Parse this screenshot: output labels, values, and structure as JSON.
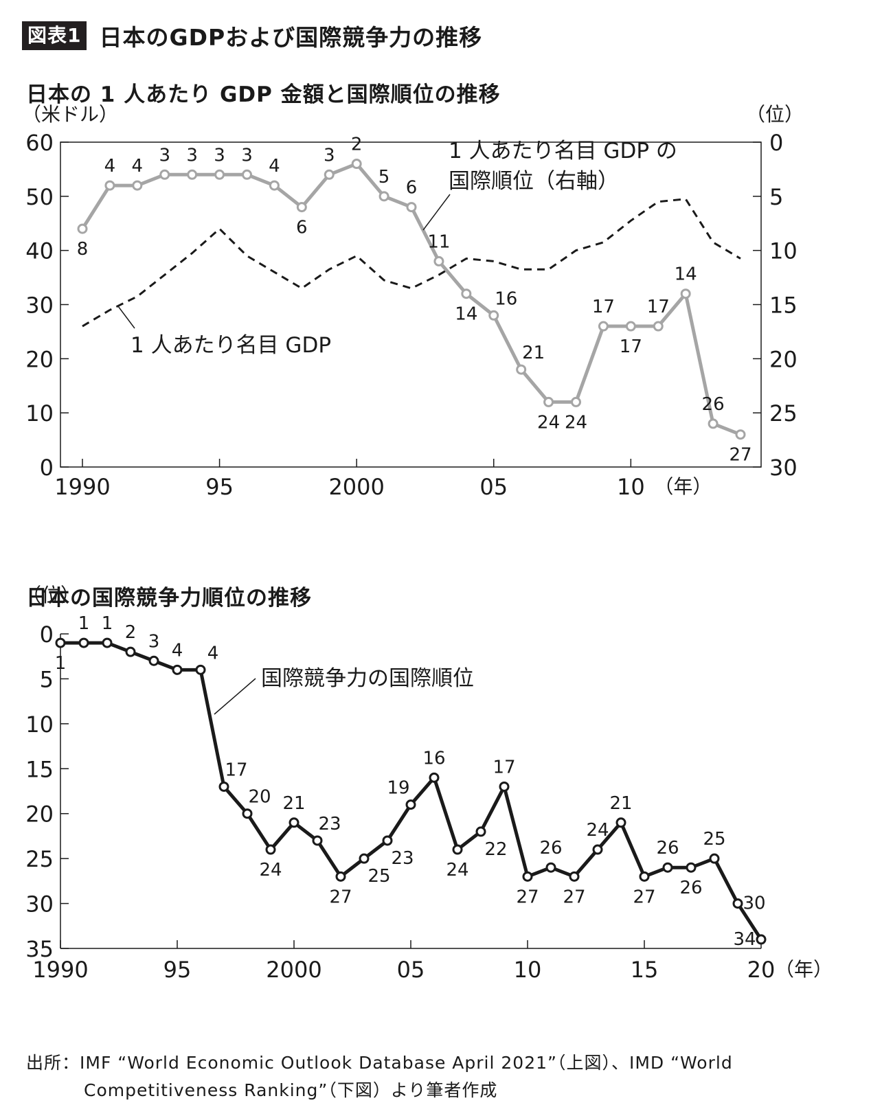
{
  "header": {
    "badge": "図表1",
    "title": "日本のGDPおよび国際競争力の推移"
  },
  "chart_data": [
    {
      "type": "line",
      "title": "日本の 1 人あたり GDP 金額と国際順位の推移",
      "y_unit_left": "（米ドル）",
      "y_unit_right": "（位）",
      "x_unit": "（年）",
      "x_tick_labels": [
        "1990",
        "95",
        "2000",
        "05",
        "10"
      ],
      "x_ticks": [
        1990,
        1995,
        2000,
        2005,
        2010
      ],
      "xlim": [
        1990,
        2014
      ],
      "ylim_left": [
        0,
        60
      ],
      "y_ticks_left": [
        0,
        10,
        20,
        30,
        40,
        50,
        60
      ],
      "ylim_right": [
        0,
        30
      ],
      "y_ticks_right": [
        0,
        5,
        10,
        15,
        20,
        25,
        30
      ],
      "right_axis_reversed": true,
      "series": [
        {
          "name": "1 人あたり名目 GDP の国際順位（右軸）",
          "axis": "right",
          "style": "solid-gray-markers",
          "color": "#a5a5a5",
          "x": [
            1990,
            1991,
            1992,
            1993,
            1994,
            1995,
            1996,
            1997,
            1998,
            1999,
            2000,
            2001,
            2002,
            2003,
            2004,
            2005,
            2006,
            2007,
            2008,
            2009,
            2010,
            2011,
            2012,
            2013,
            2014
          ],
          "values": [
            8,
            4,
            4,
            3,
            3,
            3,
            3,
            4,
            6,
            3,
            2,
            5,
            6,
            11,
            14,
            16,
            21,
            24,
            24,
            17,
            17,
            17,
            14,
            26,
            27
          ],
          "label_pos": [
            "b",
            "t",
            "t",
            "t",
            "t",
            "t",
            "t",
            "t",
            "b",
            "t",
            "t",
            "t",
            "t",
            "t",
            "b",
            "tr",
            "tr",
            "b",
            "b",
            "t",
            "b",
            "t",
            "t",
            "t",
            "b"
          ]
        },
        {
          "name": "1 人あたり名目 GDP",
          "axis": "left",
          "style": "dashed-black",
          "color": "#1a1a1a",
          "x": [
            1990,
            1991,
            1992,
            1993,
            1994,
            1995,
            1996,
            1997,
            1998,
            1999,
            2000,
            2001,
            2002,
            2003,
            2004,
            2005,
            2006,
            2007,
            2008,
            2009,
            2010,
            2011,
            2012,
            2013,
            2014
          ],
          "values": [
            26,
            29,
            31.5,
            35.5,
            39.5,
            44,
            39,
            36,
            33,
            36.5,
            39,
            34.5,
            33,
            35.5,
            38.5,
            38,
            36.5,
            36.5,
            40,
            41.5,
            45.5,
            49,
            49.5,
            41.5,
            38.5
          ]
        }
      ]
    },
    {
      "type": "line",
      "title": "日本の国際競争力順位の推移",
      "y_unit": "（位）",
      "x_unit": "（年）",
      "x_tick_labels": [
        "1990",
        "95",
        "2000",
        "05",
        "10",
        "15",
        "20"
      ],
      "x_ticks": [
        1990,
        1995,
        2000,
        2005,
        2010,
        2015,
        2020
      ],
      "xlim": [
        1990,
        2020
      ],
      "ylim": [
        0,
        35
      ],
      "y_ticks": [
        0,
        5,
        10,
        15,
        20,
        25,
        30,
        35
      ],
      "y_reversed": true,
      "series": [
        {
          "name": "国際競争力の国際順位",
          "style": "solid-black-markers",
          "color": "#1a1a1a",
          "x": [
            1990,
            1991,
            1992,
            1993,
            1994,
            1995,
            1996,
            1997,
            1998,
            1999,
            2000,
            2001,
            2002,
            2003,
            2004,
            2005,
            2006,
            2007,
            2008,
            2009,
            2010,
            2011,
            2012,
            2013,
            2014,
            2015,
            2016,
            2017,
            2018,
            2019,
            2020
          ],
          "values": [
            1,
            1,
            1,
            2,
            3,
            4,
            4,
            17,
            20,
            24,
            21,
            23,
            27,
            25,
            23,
            19,
            16,
            24,
            22,
            17,
            27,
            26,
            27,
            24,
            21,
            27,
            26,
            26,
            25,
            30,
            34
          ],
          "label_pos": [
            "b",
            "t",
            "t",
            "t",
            "t",
            "t",
            "tr",
            "tr",
            "tr",
            "b",
            "t",
            "tr",
            "b",
            "br",
            "br",
            "tl",
            "t",
            "b",
            "br",
            "t",
            "b",
            "t",
            "b",
            "t",
            "t",
            "b",
            "t",
            "b",
            "t",
            "r",
            "l"
          ]
        }
      ]
    }
  ],
  "source": {
    "line1": "出所：IMF “World Economic Outlook Database April 2021”（上図）、IMD “World",
    "line2": "Competitiveness Ranking”（下図）より筆者作成"
  }
}
